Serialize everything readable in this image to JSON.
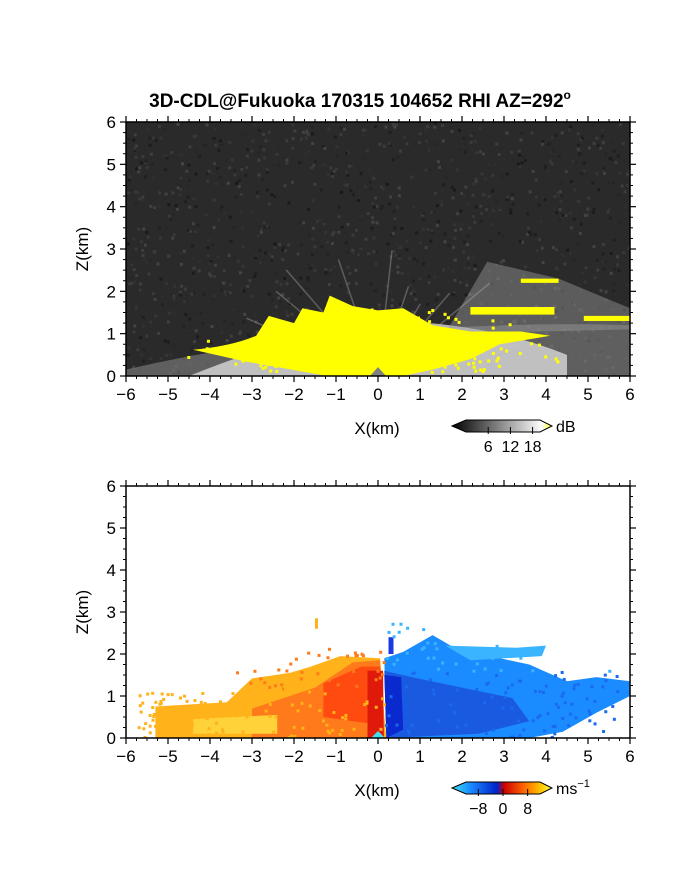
{
  "title": "3D-CDL@Fukuoka 170315 104652 RHI AZ=292",
  "title_sup": "o",
  "chart_data": [
    {
      "type": "heatmap",
      "panel": "top",
      "variable": "backscatter",
      "xlabel": "X(km)",
      "ylabel": "Z(km)",
      "xlim": [
        -6,
        6
      ],
      "ylim": [
        0,
        6
      ],
      "x_ticks": [
        -6,
        -5,
        -4,
        -3,
        -2,
        -1,
        0,
        1,
        2,
        3,
        4,
        5,
        6
      ],
      "y_ticks": [
        0,
        1,
        2,
        3,
        4,
        5,
        6
      ],
      "x_tick_labels": [
        "−6",
        "−5",
        "−4",
        "−3",
        "−2",
        "−1",
        "0",
        "1",
        "2",
        "3",
        "4",
        "5",
        "6"
      ],
      "y_tick_labels": [
        "0",
        "1",
        "2",
        "3",
        "4",
        "5",
        "6"
      ],
      "colorbar": {
        "unit": "dB",
        "ticks": [
          6,
          12,
          18
        ],
        "tick_labels": [
          "6",
          "12",
          "18"
        ],
        "range": [
          0,
          20
        ],
        "colors": [
          "#000000",
          "#ffffff",
          "#ffff00"
        ]
      },
      "background_color": "#2a2a2a",
      "high_echo_color": "#ffff00"
    },
    {
      "type": "heatmap",
      "panel": "bottom",
      "variable": "doppler velocity",
      "xlabel": "X(km)",
      "ylabel": "Z(km)",
      "xlim": [
        -6,
        6
      ],
      "ylim": [
        0,
        6
      ],
      "x_ticks": [
        -6,
        -5,
        -4,
        -3,
        -2,
        -1,
        0,
        1,
        2,
        3,
        4,
        5,
        6
      ],
      "y_ticks": [
        0,
        1,
        2,
        3,
        4,
        5,
        6
      ],
      "x_tick_labels": [
        "−6",
        "−5",
        "−4",
        "−3",
        "−2",
        "−1",
        "0",
        "1",
        "2",
        "3",
        "4",
        "5",
        "6"
      ],
      "y_tick_labels": [
        "0",
        "1",
        "2",
        "3",
        "4",
        "5",
        "6"
      ],
      "colorbar": {
        "unit": "ms",
        "unit_sup": "−1",
        "ticks": [
          -8,
          0,
          8
        ],
        "tick_labels": [
          "−8",
          "0",
          "8"
        ],
        "range": [
          -12,
          12
        ],
        "colors": [
          "#40e0f0",
          "#1a8cff",
          "#0022cc",
          "#cc0000",
          "#ff6600",
          "#ffcc00",
          "#ffff66"
        ]
      },
      "approaching_side": "x>0 (negative velocities, blue)",
      "receding_side": "x<0 (positive velocities, red/orange)"
    }
  ]
}
